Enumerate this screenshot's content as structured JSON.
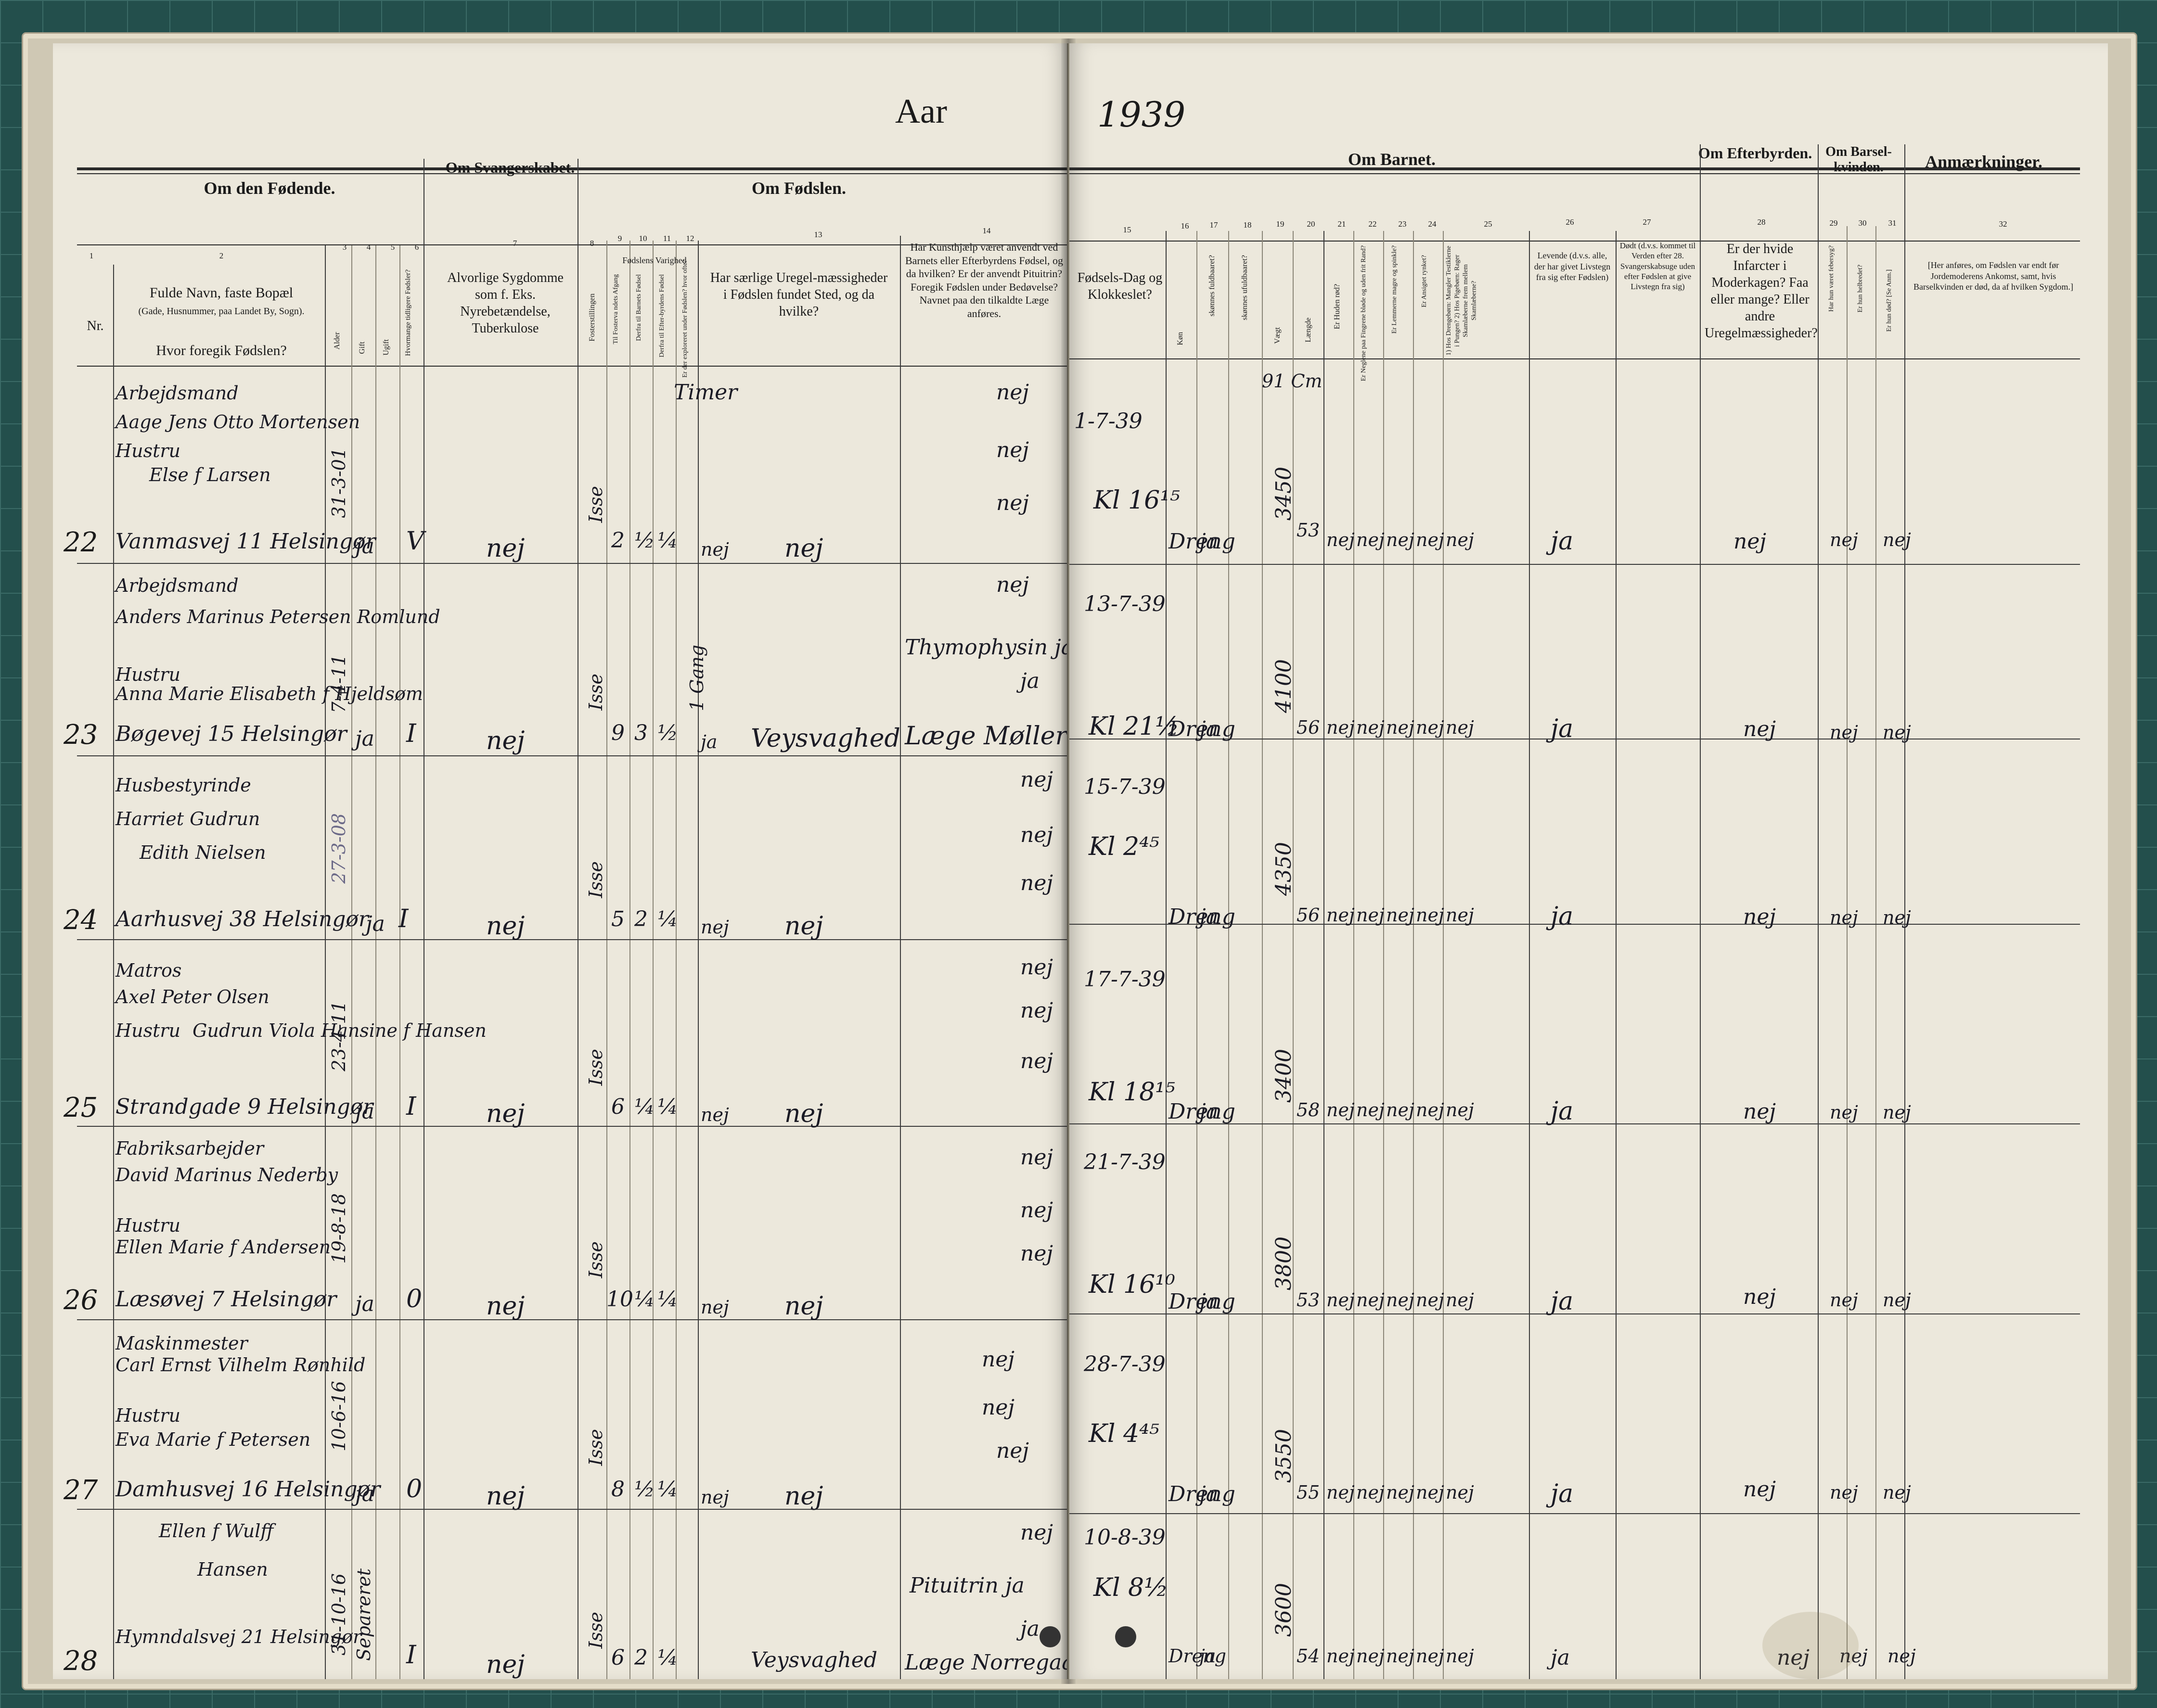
{
  "year": {
    "label": "Aar",
    "value": "1939"
  },
  "groups": {
    "mother": "Om den Fødende.",
    "pregnancy": "Om Svangerskabet.",
    "birth": "Om Fødslen.",
    "child": "Om Barnet.",
    "afterbirth": "Om Efterbyrden.",
    "postpartum": "Om Barsel-kvinden.",
    "remarks": "Anmærkninger."
  },
  "col_numbers": [
    "1",
    "2",
    "3",
    "4",
    "5",
    "6",
    "7",
    "8",
    "9",
    "10",
    "11",
    "12",
    "13",
    "14",
    "15",
    "16",
    "17",
    "18",
    "19",
    "20",
    "21",
    "22",
    "23",
    "24",
    "25",
    "26",
    "27",
    "28",
    "29",
    "30",
    "31",
    "32"
  ],
  "headers": {
    "nr": "Nr.",
    "name_title": "Fulde Navn, faste Bopæl",
    "name_sub": "(Gade, Husnummer, paa Landet By, Sogn).",
    "name_q": "Hvor foregik Fødslen?",
    "age": "Alder",
    "married": "Gift",
    "unmarried": "Ugift",
    "prev_births": "Hvormange tidligere Fødsler?",
    "disease": "Alvorlige Sygdomme som f. Eks. Nyrebetændelse, Tuberkulose",
    "presentation": "Fosterstillingen",
    "duration": "Fødslens Varighed",
    "dur_a": "Til Fosterva ndets Afgang",
    "dur_b": "Derfra til Barnets Fødsel",
    "dur_c": "Derfra til Efter-byrdens Fødsel",
    "explored": "Er der exploreret under Fødslen? hvor ofte?",
    "irregular": "Har særlige Uregel-mæssigheder i Fødslen fundet Sted, og da hvilke?",
    "help": "Har Kunsthjælp været anvendt ved Barnets eller Efterbyrdens Fødsel, og da hvilken? Er der anvendt Pituitrin? Foregik Fødslen under Bedøvelse? Navnet paa den tilkaldte Læge anføres.",
    "birth_day": "Fødsels-Dag og Klokkeslet?",
    "sex": "Køn",
    "fullterm": "skønnes fuldbaaret?",
    "notfullterm": "skønnes ufuldbaaret?",
    "weight": "Vægt",
    "length": "Længde",
    "skin_red": "Er Huden rød?",
    "nails": "Er Neglene paa Fingrene bløde og uden frit Rand?",
    "limbs": "Er Lemmerne magre og spinkle?",
    "face": "Er Ansigtet rynket?",
    "genitals": "1) Hos Drengebørn: Mangler Testiklerne i Pungen? 2) Hos Pigebørn: Rager Skamlæberne frem mellem Skamlæberne?",
    "alive": "Levende (d.v.s. alle, der har givet Livstegn fra sig efter Fødslen)",
    "dead": "Dødt (d.v.s. kommet til Verden efter 28. Svangerskabsuge uden efter Fødslen at give Livstegn fra sig)",
    "placenta": "Er der hvide Infarcter i Moderkagen? Faa eller mange? Eller andre Uregelmæssigheder?",
    "feverish": "Har hun været febersyg?",
    "healthy": "Er hun helbredet?",
    "died": "Er hun død? [Se Anm.]",
    "remarks_note": "[Her anføres, om Fødslen var endt før Jordemoderens Ankomst, samt, hvis Barselkvinden er død, da af hvilken Sygdom.]"
  },
  "rows": [
    {
      "nr": "22",
      "occupation": "Arbejdsmand",
      "name": "Aage Jens Otto Mortensen",
      "spouse_label": "Hustru",
      "spouse": "Else f Larsen",
      "address": "Vanmasvej 11 Helsingør",
      "birthdate": "31-3-01",
      "married": "ja",
      "prev": "V",
      "disease": "nej",
      "presentation": "Isse",
      "d1": "2",
      "d2": "½",
      "d3": "¼",
      "explored": "nej",
      "irregular": "nej",
      "help_1": "nej",
      "help_2": "nej",
      "help_3": "nej",
      "date": "1-7-39",
      "time": "Kl 16¹⁵",
      "sex": "Dreng",
      "full": "ja",
      "weight": "3450",
      "length": "53",
      "c21": "nej",
      "c22": "nej",
      "c23": "nej",
      "c24": "nej",
      "c25": "nej",
      "alive": "ja",
      "placenta": "nej",
      "fever": "nej",
      "dead_m": "nej",
      "extra": "Timer",
      "extra2": "91 Cm"
    },
    {
      "nr": "23",
      "occupation": "Arbejdsmand",
      "name": "Anders Marinus Petersen Romlund",
      "spouse_label": "Hustru",
      "spouse": "Anna Marie Elisabeth f Hjeldsøm",
      "address": "Bøgevej 15 Helsingør",
      "birthdate": "7-4-11",
      "married": "ja",
      "prev": "I",
      "disease": "nej",
      "presentation": "Isse",
      "d1": "9",
      "d2": "3",
      "d3": "½",
      "explored": "ja",
      "explored_note": "1 Gang",
      "irregular": "Veysvaghed",
      "help_1": "nej",
      "help_2": "Thymophysin ja",
      "help_3": "ja",
      "help_4": "Læge Møller",
      "date": "13-7-39",
      "time": "Kl 21½",
      "sex": "Dreng",
      "full": "ja",
      "weight": "4100",
      "length": "56",
      "c21": "nej",
      "c22": "nej",
      "c23": "nej",
      "c24": "nej",
      "c25": "nej",
      "alive": "ja",
      "placenta": "nej",
      "fever": "nej",
      "dead_m": "nej"
    },
    {
      "nr": "24",
      "occupation": "Husbestyrinde",
      "name": "Harriet Gudrun",
      "spouse_label": "",
      "spouse": "Edith Nielsen",
      "address": "Aarhusvej 38 Helsingør",
      "birthdate": "27-3-08",
      "married": "ja",
      "prev": "I",
      "disease": "nej",
      "presentation": "Isse",
      "d1": "5",
      "d2": "2",
      "d3": "¼",
      "explored": "nej",
      "irregular": "nej",
      "help_1": "nej",
      "help_2": "nej",
      "help_3": "nej",
      "date": "15-7-39",
      "time": "Kl 2⁴⁵",
      "sex": "Dreng",
      "full": "ja",
      "weight": "4350",
      "length": "56",
      "c21": "nej",
      "c22": "nej",
      "c23": "nej",
      "c24": "nej",
      "c25": "nej",
      "alive": "ja",
      "placenta": "nej",
      "fever": "nej",
      "dead_m": "nej"
    },
    {
      "nr": "25",
      "occupation": "Matros",
      "name": "Axel Peter Olsen",
      "spouse_label": "Hustru",
      "spouse": "Gudrun Viola Hansine f Hansen",
      "address": "Strandgade 9 Helsingør",
      "birthdate": "23-4-11",
      "married": "ja",
      "prev": "I",
      "disease": "nej",
      "presentation": "Isse",
      "d1": "6",
      "d2": "¼",
      "d3": "¼",
      "explored": "nej",
      "irregular": "nej",
      "help_1": "nej",
      "help_2": "nej",
      "help_3": "nej",
      "date": "17-7-39",
      "time": "Kl 18¹⁵",
      "sex": "Dreng",
      "full": "ja",
      "weight": "3400",
      "length": "58",
      "c21": "nej",
      "c22": "nej",
      "c23": "nej",
      "c24": "nej",
      "c25": "nej",
      "alive": "ja",
      "placenta": "nej",
      "fever": "nej",
      "dead_m": "nej"
    },
    {
      "nr": "26",
      "occupation": "Fabriksarbejder",
      "name": "David Marinus Nederby",
      "spouse_label": "Hustru",
      "spouse": "Ellen Marie f Andersen",
      "address": "Læsøvej 7 Helsingør",
      "birthdate": "19-8-18",
      "married": "ja",
      "prev": "0",
      "disease": "nej",
      "presentation": "Isse",
      "d1": "10",
      "d2": "¼",
      "d3": "¼",
      "explored": "nej",
      "irregular": "nej",
      "help_1": "nej",
      "help_2": "nej",
      "help_3": "nej",
      "date": "21-7-39",
      "time": "Kl 16¹⁰",
      "sex": "Dreng",
      "full": "ja",
      "weight": "3800",
      "length": "53",
      "c21": "nej",
      "c22": "nej",
      "c23": "nej",
      "c24": "nej",
      "c25": "nej",
      "alive": "ja",
      "placenta": "nej",
      "fever": "nej",
      "dead_m": "nej"
    },
    {
      "nr": "27",
      "occupation": "Maskinmester",
      "name": "Carl Ernst Vilhelm Rønhild",
      "spouse_label": "Hustru",
      "spouse": "Eva Marie f Petersen",
      "address": "Damhusvej 16 Helsingør",
      "birthdate": "10-6-16",
      "married": "ja",
      "prev": "0",
      "disease": "nej",
      "presentation": "Isse",
      "d1": "8",
      "d2": "½",
      "d3": "¼",
      "explored": "nej",
      "irregular": "nej",
      "help_1": "nej",
      "help_2": "nej",
      "help_3": "nej",
      "date": "28-7-39",
      "time": "Kl 4⁴⁵",
      "sex": "Dreng",
      "full": "ja",
      "weight": "3550",
      "length": "55",
      "c21": "nej",
      "c22": "nej",
      "c23": "nej",
      "c24": "nej",
      "c25": "nej",
      "alive": "ja",
      "placenta": "nej",
      "fever": "nej",
      "dead_m": "nej"
    },
    {
      "nr": "28",
      "occupation": "",
      "name": "Ellen f Wulff",
      "spouse_label": "",
      "spouse": "Hansen",
      "address": "Hymndalsvej 21 Helsingør",
      "birthdate": "31-10-16",
      "married": "Separeret",
      "prev": "I",
      "disease": "nej",
      "presentation": "Isse",
      "d1": "6",
      "d2": "2",
      "d3": "¼",
      "explored": "",
      "irregular": "Veysvaghed",
      "help_1": "nej",
      "help_2": "Pituitrin ja",
      "help_3": "ja",
      "help_4": "Læge Norregaard",
      "date": "10-8-39",
      "time": "Kl 8½",
      "sex": "Dreng",
      "full": "ja",
      "weight": "3600",
      "length": "54",
      "c21": "nej",
      "c22": "nej",
      "c23": "nej",
      "c24": "nej",
      "c25": "nej",
      "alive": "ja",
      "placenta": "nej",
      "fever": "nej",
      "dead_m": "nej"
    }
  ]
}
